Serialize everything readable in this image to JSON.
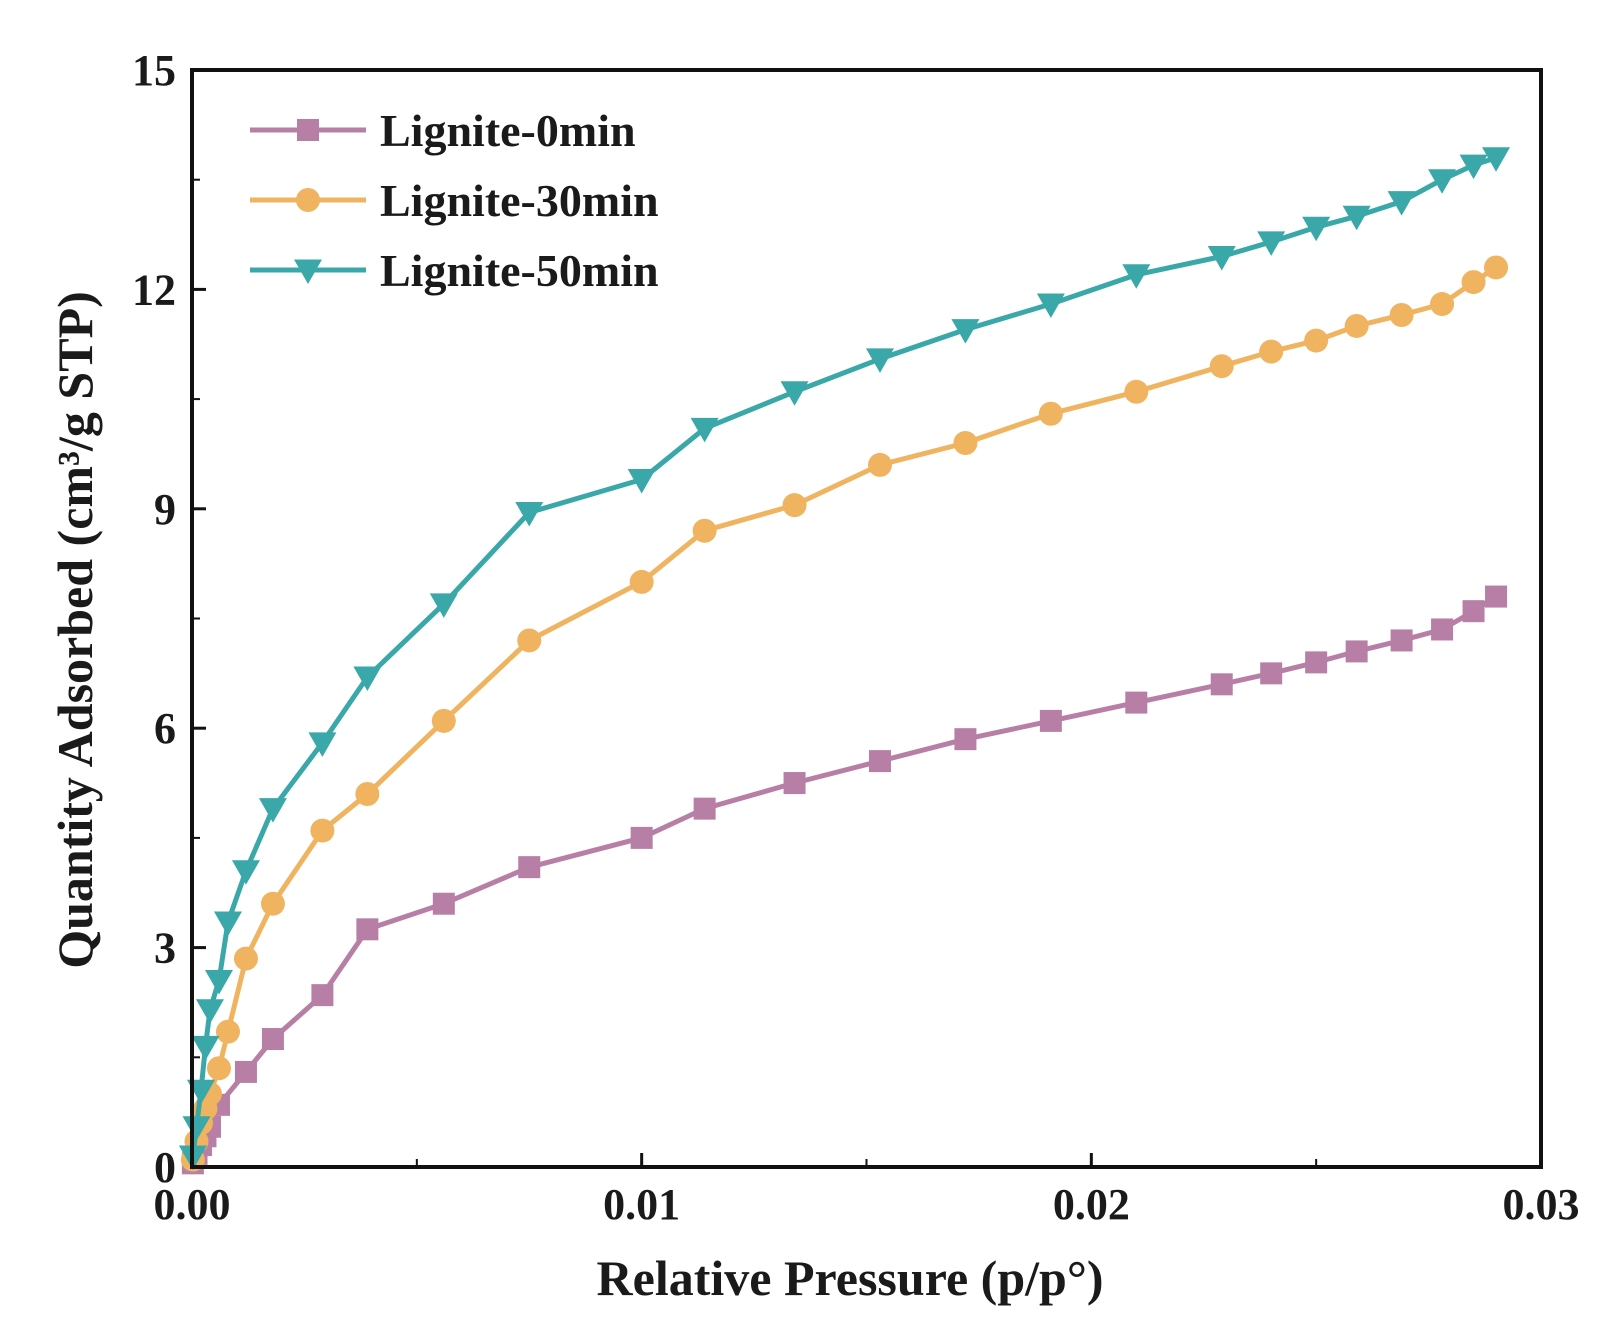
{
  "chart_data": {
    "type": "line",
    "title": "",
    "xlabel": "Relative Pressure (p/p°)",
    "ylabel": "Quantity Adsorbed (cm³/g STP)",
    "xlim": [
      0,
      0.03
    ],
    "ylim": [
      0,
      15
    ],
    "xticks": [
      0,
      0.01,
      0.02,
      0.03
    ],
    "xtick_labels": [
      "0.00",
      "0.01",
      "0.02",
      "0.03"
    ],
    "yticks": [
      0,
      3,
      6,
      9,
      12,
      15
    ],
    "ytick_labels": [
      "0",
      "3",
      "6",
      "9",
      "12",
      "15"
    ],
    "grid": false,
    "legend_position": "top-left",
    "series": [
      {
        "name": "Lignite-0min",
        "color": "#b77fa6",
        "marker": "square",
        "x": [
          2e-05,
          0.0001,
          0.0002,
          0.0003,
          0.0004,
          0.0006,
          0.0012,
          0.0018,
          0.0029,
          0.0039,
          0.0056,
          0.0075,
          0.01,
          0.0114,
          0.0134,
          0.0153,
          0.0172,
          0.0191,
          0.021,
          0.0229,
          0.024,
          0.025,
          0.0259,
          0.0269,
          0.0278,
          0.0285,
          0.029
        ],
        "y": [
          0.05,
          0.18,
          0.3,
          0.42,
          0.55,
          0.85,
          1.3,
          1.75,
          2.35,
          3.25,
          3.6,
          4.1,
          4.5,
          4.9,
          5.25,
          5.55,
          5.85,
          6.1,
          6.35,
          6.6,
          6.75,
          6.9,
          7.05,
          7.2,
          7.35,
          7.6,
          7.8
        ]
      },
      {
        "name": "Lignite-30min",
        "color": "#f0b360",
        "marker": "circle",
        "x": [
          2e-05,
          0.0001,
          0.0002,
          0.0003,
          0.0004,
          0.0006,
          0.0008,
          0.0012,
          0.0018,
          0.0029,
          0.0039,
          0.0056,
          0.0075,
          0.01,
          0.0114,
          0.0134,
          0.0153,
          0.0172,
          0.0191,
          0.021,
          0.0229,
          0.024,
          0.025,
          0.0259,
          0.0269,
          0.0278,
          0.0285,
          0.029
        ],
        "y": [
          0.1,
          0.35,
          0.6,
          0.8,
          1.0,
          1.35,
          1.85,
          2.85,
          3.6,
          4.6,
          5.1,
          6.1,
          7.2,
          8.0,
          8.7,
          9.05,
          9.6,
          9.9,
          10.3,
          10.6,
          10.95,
          11.15,
          11.3,
          11.5,
          11.65,
          11.8,
          12.1,
          12.3
        ]
      },
      {
        "name": "Lignite-50min",
        "color": "#3aa8a8",
        "marker": "triangle-down",
        "x": [
          2e-05,
          0.0001,
          0.0002,
          0.0003,
          0.0004,
          0.0006,
          0.0008,
          0.0012,
          0.0018,
          0.0029,
          0.0039,
          0.0056,
          0.0075,
          0.01,
          0.0114,
          0.0134,
          0.0153,
          0.0172,
          0.0191,
          0.021,
          0.0229,
          0.024,
          0.025,
          0.0259,
          0.0269,
          0.0278,
          0.0285,
          0.029
        ],
        "y": [
          0.15,
          0.55,
          1.05,
          1.65,
          2.15,
          2.55,
          3.35,
          4.05,
          4.9,
          5.8,
          6.7,
          7.7,
          8.95,
          9.4,
          10.1,
          10.6,
          11.05,
          11.45,
          11.8,
          12.2,
          12.45,
          12.65,
          12.85,
          13.0,
          13.2,
          13.5,
          13.7,
          13.8
        ]
      }
    ]
  }
}
